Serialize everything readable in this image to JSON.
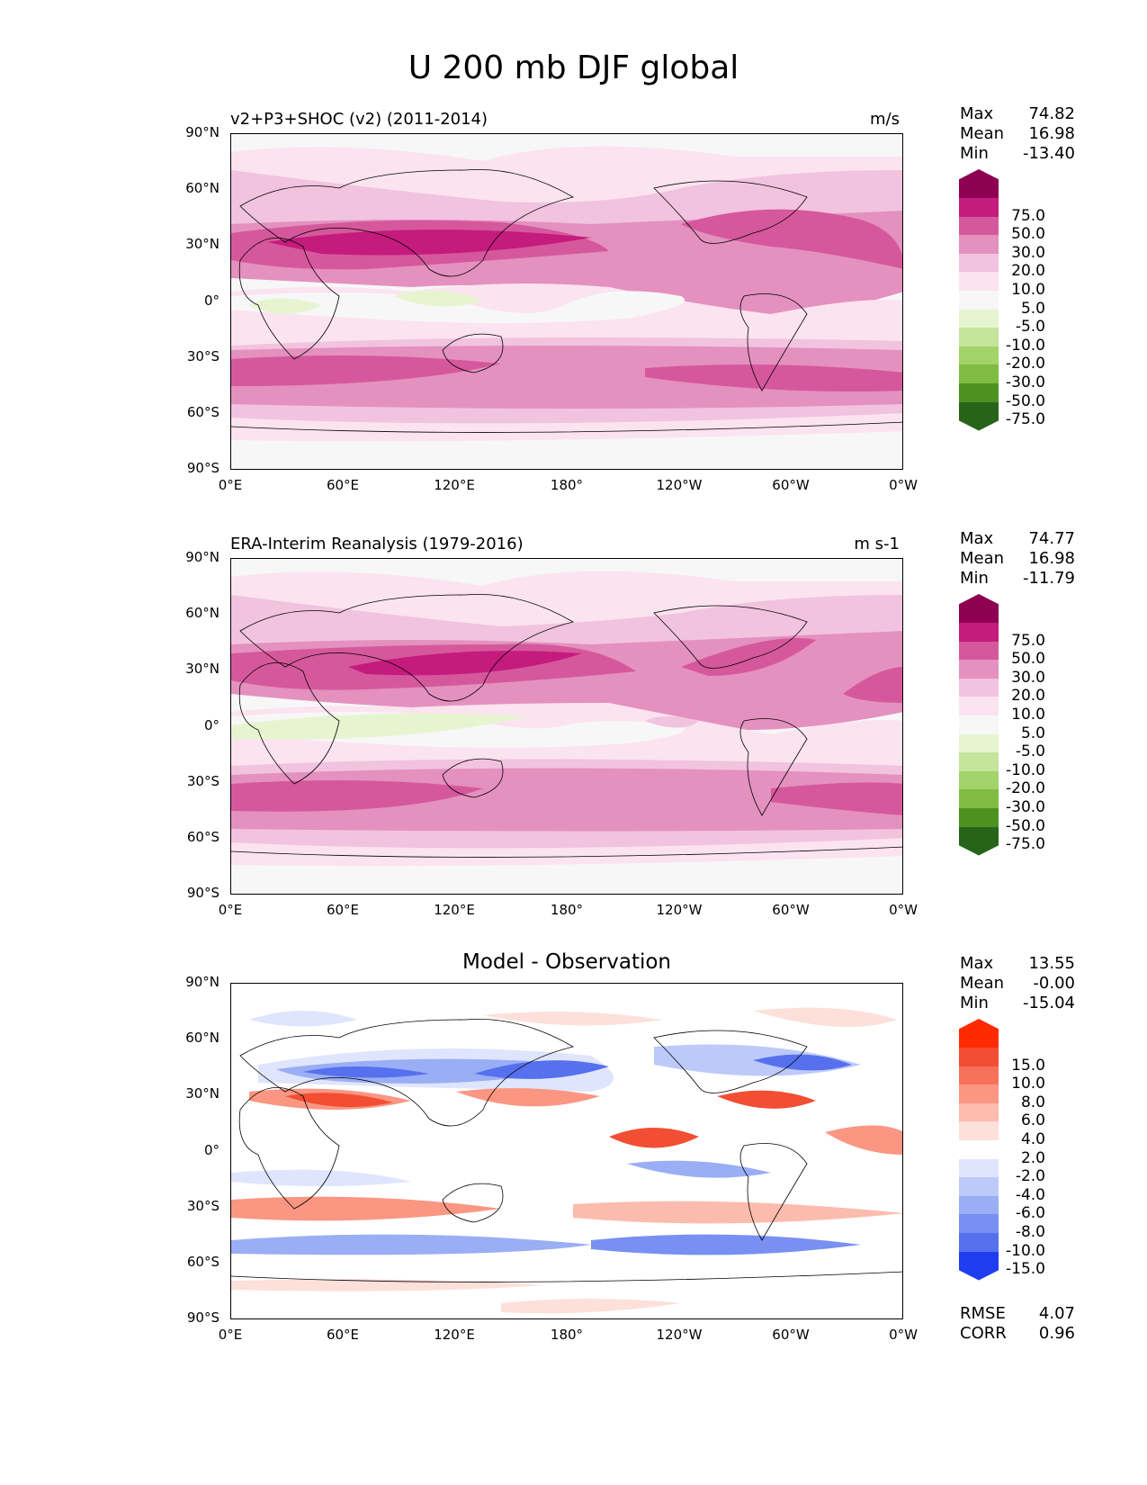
{
  "figure_title": "U 200 mb DJF global",
  "panels": [
    {
      "id": "test",
      "title_left": "v2+P3+SHOC (v2) (2011-2014)",
      "title_right": "m/s",
      "stats": {
        "max_label": "Max",
        "max": "74.82",
        "mean_label": "Mean",
        "mean": "16.98",
        "min_label": "Min",
        "min": "-13.40"
      }
    },
    {
      "id": "ref",
      "title_left": "ERA-Interim Reanalysis (1979-2016)",
      "title_right": "m s-1",
      "stats": {
        "max_label": "Max",
        "max": "74.77",
        "mean_label": "Mean",
        "mean": "16.98",
        "min_label": "Min",
        "min": "-11.79"
      }
    },
    {
      "id": "diff",
      "title_center": "Model - Observation",
      "stats": {
        "max_label": "Max",
        "max": "13.55",
        "mean_label": "Mean",
        "mean": "-0.00",
        "min_label": "Min",
        "min": "-15.04"
      },
      "metrics": {
        "rmse_label": "RMSE",
        "rmse": "4.07",
        "corr_label": "CORR",
        "corr": "0.96"
      }
    }
  ],
  "axes": {
    "lat_labels": [
      "90°N",
      "60°N",
      "30°N",
      "0°",
      "30°S",
      "60°S",
      "90°S"
    ],
    "lon_labels": [
      "0°E",
      "60°E",
      "120°E",
      "180°",
      "120°W",
      "60°W",
      "0°W"
    ]
  },
  "colorbars": {
    "field": {
      "labels": [
        "75.0",
        "50.0",
        "30.0",
        "20.0",
        "10.0",
        "5.0",
        "-5.0",
        "-10.0",
        "-20.0",
        "-30.0",
        "-50.0",
        "-75.0"
      ],
      "colors": [
        "#8e0152",
        "#c51b7d",
        "#d6589c",
        "#e491bf",
        "#f1c3de",
        "#fbe3ef",
        "#f7f7f7",
        "#e6f5d0",
        "#c5e59b",
        "#a1d46a",
        "#7fbc41",
        "#4d9221",
        "#276419"
      ]
    },
    "diff": {
      "labels": [
        "15.0",
        "10.0",
        "8.0",
        "6.0",
        "4.0",
        "2.0",
        "-2.0",
        "-4.0",
        "-6.0",
        "-8.0",
        "-10.0",
        "-15.0"
      ],
      "colors": [
        "#ff2a00",
        "#f24e33",
        "#f7715a",
        "#fb9683",
        "#fdbcae",
        "#fde0da",
        "#ffffff",
        "#dfe5fd",
        "#bdcaf9",
        "#9aaef5",
        "#7890f1",
        "#5670ee",
        "#1f3df0"
      ]
    }
  },
  "chart_data": [
    {
      "type": "heatmap",
      "title": "v2+P3+SHOC (v2) (2011-2014)",
      "variable": "U 200 mb DJF",
      "units": "m/s",
      "max": 74.82,
      "mean": 16.98,
      "min": -13.4,
      "xlim": [
        0,
        360
      ],
      "ylim": [
        -90,
        90
      ],
      "levels": [
        -75,
        -50,
        -30,
        -20,
        -10,
        -5,
        5,
        10,
        20,
        30,
        50,
        75
      ]
    },
    {
      "type": "heatmap",
      "title": "ERA-Interim Reanalysis (1979-2016)",
      "variable": "U 200 mb DJF",
      "units": "m s-1",
      "max": 74.77,
      "mean": 16.98,
      "min": -11.79,
      "xlim": [
        0,
        360
      ],
      "ylim": [
        -90,
        90
      ],
      "levels": [
        -75,
        -50,
        -30,
        -20,
        -10,
        -5,
        5,
        10,
        20,
        30,
        50,
        75
      ]
    },
    {
      "type": "heatmap",
      "title": "Model - Observation",
      "max": 13.55,
      "mean": -0.0,
      "min": -15.04,
      "rmse": 4.07,
      "corr": 0.96,
      "xlim": [
        0,
        360
      ],
      "ylim": [
        -90,
        90
      ],
      "levels": [
        -15,
        -10,
        -8,
        -6,
        -4,
        -2,
        2,
        4,
        6,
        8,
        10,
        15
      ]
    }
  ]
}
